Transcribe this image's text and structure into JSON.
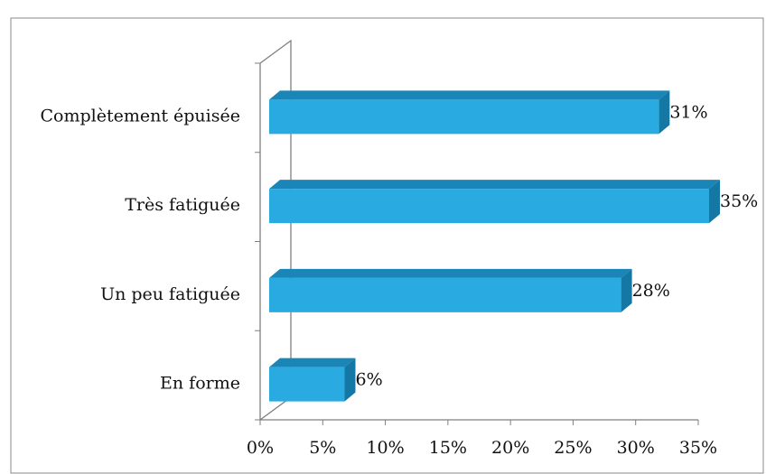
{
  "chart_data": {
    "type": "bar",
    "orientation": "horizontal",
    "categories": [
      "Complètement épuisée",
      "Très fatiguée",
      "Un peu fatiguée",
      "En forme"
    ],
    "values": [
      31,
      35,
      28,
      6
    ],
    "value_labels": [
      "31%",
      "35%",
      "28%",
      "6%"
    ],
    "color": "#29abe2",
    "xlim": [
      0,
      35
    ],
    "xticks": [
      {
        "value": 0,
        "label": "0%"
      },
      {
        "value": 5,
        "label": "5%"
      },
      {
        "value": 10,
        "label": "10%"
      },
      {
        "value": 15,
        "label": "15%"
      },
      {
        "value": 20,
        "label": "20%"
      },
      {
        "value": 25,
        "label": "25%"
      },
      {
        "value": 30,
        "label": "30%"
      },
      {
        "value": 35,
        "label": "35%"
      }
    ]
  }
}
